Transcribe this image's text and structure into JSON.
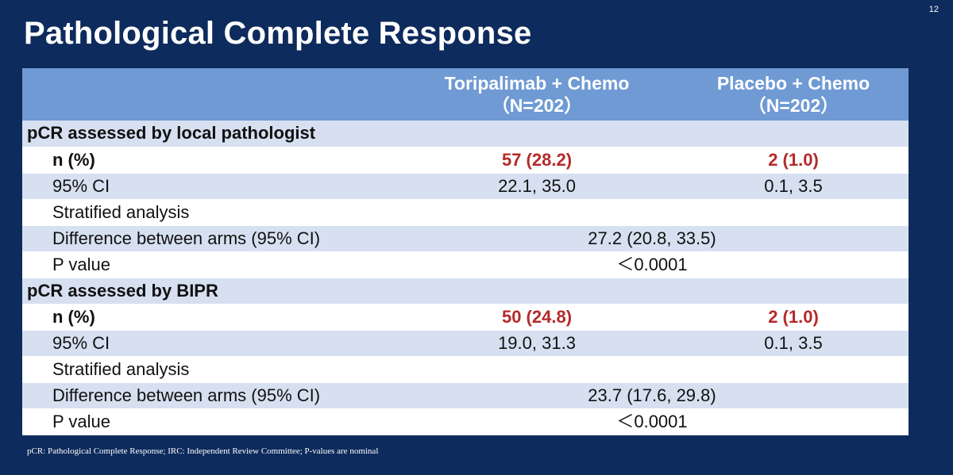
{
  "slide_number": "12",
  "title": "Pathological Complete Response",
  "table": {
    "header": {
      "col1": "",
      "col2_line1": "Toripalimab + Chemo",
      "col2_line2": "（N=202）",
      "col3_line1": "Placebo + Chemo",
      "col3_line2": "（N=202）"
    },
    "sections": [
      {
        "title": "pCR assessed by local pathologist",
        "n_label": "n (%)",
        "n_tori": "57 (28.2)",
        "n_placebo": "2 (1.0)",
        "ci_label": "95% CI",
        "ci_tori": "22.1, 35.0",
        "ci_placebo": "0.1,  3.5",
        "strat_label": "Stratified analysis",
        "diff_label": "Difference between arms (95% CI)",
        "diff_value": "27.2 (20.8, 33.5)",
        "p_label": "P value",
        "p_value": "＜0.0001"
      },
      {
        "title": "pCR assessed by BIPR",
        "n_label": "n (%)",
        "n_tori": "50 (24.8)",
        "n_placebo": "2 (1.0)",
        "ci_label": "95% CI",
        "ci_tori": "19.0, 31.3",
        "ci_placebo": "0.1,  3.5",
        "strat_label": "Stratified analysis",
        "diff_label": "Difference between arms (95% CI)",
        "diff_value": "23.7 (17.6, 29.8)",
        "p_label": "P value",
        "p_value": "＜0.0001"
      }
    ]
  },
  "footnote": "pCR: Pathological Complete Response; IRC: Independent  Review Committee;  P-values are nominal",
  "colors": {
    "background": "#0d2b5c",
    "header": "#6f9ad4",
    "shaded_row": "#d6e0f1",
    "highlight_red": "#b42a2a"
  }
}
